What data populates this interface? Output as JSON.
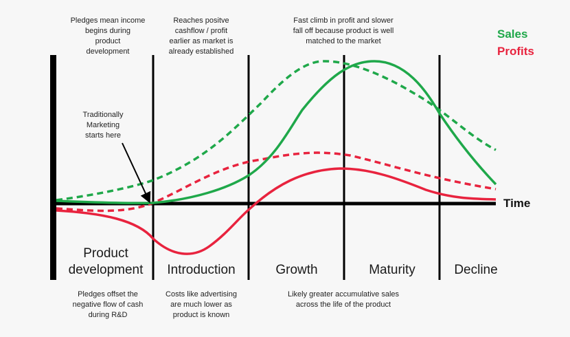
{
  "legend": {
    "sales_label": "Sales",
    "profits_label": "Profits",
    "sales_color": "#1fa84a",
    "profits_color": "#e8233e"
  },
  "axis": {
    "x_label": "Time",
    "line_color": "#000000"
  },
  "stages": [
    {
      "lines": [
        "Product",
        "development"
      ]
    },
    {
      "lines": [
        "Introduction"
      ]
    },
    {
      "lines": [
        "Growth"
      ]
    },
    {
      "lines": [
        "Maturity"
      ]
    },
    {
      "lines": [
        "Decline"
      ]
    }
  ],
  "top_notes": [
    {
      "lines": [
        "Pledges mean income",
        "begins during",
        "product",
        "development"
      ]
    },
    {
      "lines": [
        "Reaches positve",
        "cashflow / profit",
        "earlier as market is",
        "already established"
      ]
    },
    {
      "lines": [
        "Fast climb in profit and slower",
        "fall off because product is well",
        "matched to the market"
      ]
    }
  ],
  "bottom_notes": [
    {
      "lines": [
        "Pledges offset the",
        "negative flow of cash",
        "during R&D"
      ]
    },
    {
      "lines": [
        "Costs like advertising",
        "are much lower as",
        "product is known"
      ]
    },
    {
      "lines": [
        "Likely greater accumulative sales",
        "across the life of the product"
      ]
    }
  ],
  "callout": {
    "lines": [
      "Traditionally",
      "Marketing",
      "starts here"
    ]
  },
  "curves": [
    {
      "series": "sales",
      "style": "solid"
    },
    {
      "series": "sales",
      "style": "dashed"
    },
    {
      "series": "profits",
      "style": "solid"
    },
    {
      "series": "profits",
      "style": "dashed"
    }
  ]
}
